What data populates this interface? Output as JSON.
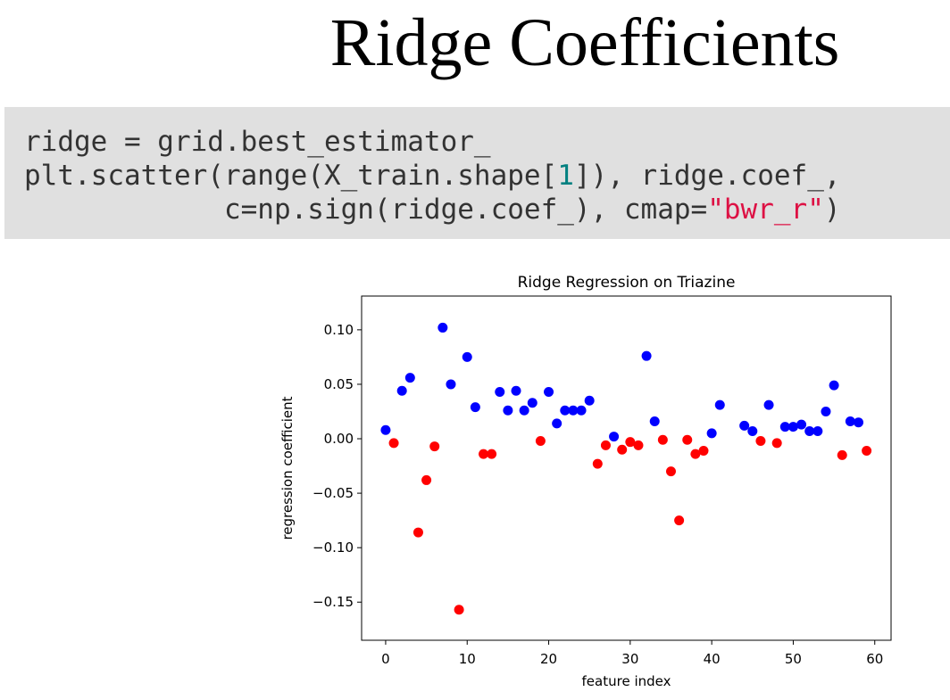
{
  "title": "Ridge Coefficients",
  "code": {
    "lines": [
      [
        {
          "text": "ridge = grid.best_estimator_",
          "color": "#333333"
        }
      ],
      [
        {
          "text": "plt.scatter(range(X_train.shape[",
          "color": "#333333"
        },
        {
          "text": "1",
          "color": "#008080"
        },
        {
          "text": "]), ridge.coef_,",
          "color": "#333333"
        }
      ],
      [
        {
          "text": "            c=np.sign(ridge.coef_), cmap=",
          "color": "#333333"
        },
        {
          "text": "\"bwr_r\"",
          "color": "#dd1144"
        },
        {
          "text": ")",
          "color": "#333333"
        }
      ]
    ]
  },
  "chart_data": {
    "type": "scatter",
    "title": "Ridge Regression on Triazine",
    "x_label": "feature index",
    "y_label": "regression coefficient",
    "x": [
      0,
      1,
      2,
      3,
      4,
      5,
      6,
      7,
      8,
      9,
      10,
      11,
      12,
      13,
      14,
      15,
      16,
      17,
      18,
      19,
      20,
      21,
      22,
      23,
      24,
      25,
      26,
      27,
      28,
      29,
      30,
      31,
      32,
      33,
      34,
      35,
      36,
      37,
      38,
      39,
      40,
      41,
      44,
      45,
      46,
      47,
      48,
      49,
      50,
      51,
      52,
      53,
      54,
      55,
      56,
      57,
      58,
      59
    ],
    "values": [
      0.008,
      -0.004,
      0.044,
      0.056,
      -0.086,
      -0.038,
      -0.007,
      0.102,
      0.05,
      -0.157,
      0.075,
      0.029,
      -0.014,
      -0.014,
      0.043,
      0.026,
      0.044,
      0.026,
      0.033,
      -0.002,
      0.043,
      0.014,
      0.026,
      0.026,
      0.026,
      0.035,
      -0.023,
      -0.006,
      0.002,
      -0.01,
      -0.003,
      -0.006,
      0.076,
      0.016,
      -0.001,
      -0.03,
      -0.075,
      -0.001,
      -0.014,
      -0.011,
      0.005,
      0.031,
      0.012,
      0.007,
      -0.002,
      0.031,
      -0.004,
      0.011,
      0.011,
      0.013,
      0.007,
      0.007,
      0.025,
      0.049,
      -0.015,
      0.016,
      0.015,
      -0.011
    ],
    "color_positive": "#0000ff",
    "color_negative": "#ff0000",
    "xlim": [
      -2.95,
      62
    ],
    "ylim": [
      -0.185,
      0.131
    ],
    "xticks": [
      0,
      10,
      20,
      30,
      40,
      50,
      60
    ],
    "yticks": [
      {
        "value": -0.15,
        "label": "−0.15"
      },
      {
        "value": -0.1,
        "label": "−0.10"
      },
      {
        "value": -0.05,
        "label": "−0.05"
      },
      {
        "value": 0,
        "label": "0.00"
      },
      {
        "value": 0.05,
        "label": "0.05"
      },
      {
        "value": 0.1,
        "label": "0.10"
      }
    ]
  }
}
